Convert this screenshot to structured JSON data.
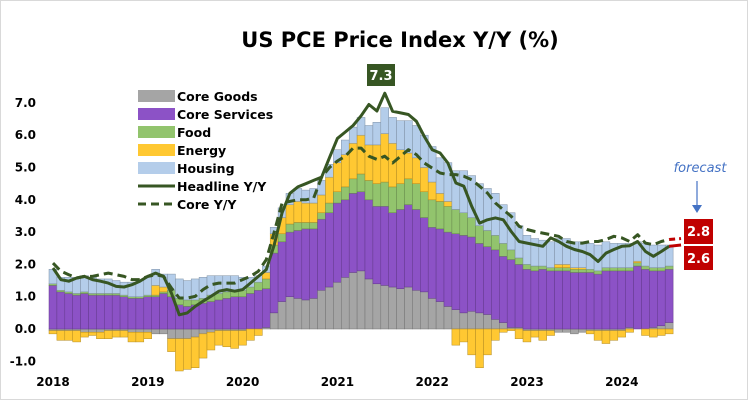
{
  "chart_data": {
    "type": "bar",
    "title": "US PCE Price Index Y/Y (%)",
    "xlabel": "",
    "ylabel": "",
    "ylim": [
      -1.0,
      7.5
    ],
    "yticks": [
      "-1.0",
      "0.0",
      "1.0",
      "2.0",
      "3.0",
      "4.0",
      "5.0",
      "6.0",
      "7.0"
    ],
    "ytick_values": [
      -1,
      0,
      1,
      2,
      3,
      4,
      5,
      6,
      7
    ],
    "x_start": "2018-01",
    "x_frequency": "monthly",
    "xtick_labels": [
      "2018",
      "2019",
      "2020",
      "2021",
      "2022",
      "2023",
      "2024"
    ],
    "grid": false,
    "legend_placement": "top-left",
    "stacked": true,
    "bar_series": [
      {
        "name": "Core Goods",
        "color": "#a5a5a5",
        "values": [
          -0.05,
          -0.05,
          -0.05,
          -0.05,
          -0.1,
          -0.1,
          -0.1,
          -0.05,
          -0.05,
          -0.05,
          -0.1,
          -0.1,
          -0.1,
          -0.15,
          -0.15,
          -0.3,
          -0.3,
          -0.3,
          -0.25,
          -0.15,
          -0.1,
          -0.05,
          -0.05,
          -0.05,
          -0.05,
          0,
          0,
          0.05,
          0.5,
          0.85,
          1.0,
          0.95,
          0.9,
          0.95,
          1.2,
          1.3,
          1.45,
          1.6,
          1.75,
          1.8,
          1.55,
          1.4,
          1.35,
          1.3,
          1.25,
          1.3,
          1.2,
          1.15,
          0.95,
          0.85,
          0.7,
          0.6,
          0.5,
          0.55,
          0.5,
          0.45,
          0.3,
          0.2,
          0.05,
          0.05,
          -0.05,
          -0.05,
          -0.05,
          -0.05,
          -0.1,
          -0.1,
          -0.15,
          -0.1,
          -0.05,
          -0.05,
          -0.05,
          -0.05,
          -0.05,
          0.05,
          0,
          0,
          0.05,
          0.1,
          0.2
        ]
      },
      {
        "name": "Core Services",
        "color": "#8c52c6",
        "values": [
          1.35,
          1.15,
          1.1,
          1.05,
          1.1,
          1.05,
          1.05,
          1.05,
          1.05,
          1.0,
          0.95,
          0.95,
          1.0,
          1.0,
          1.1,
          1.0,
          0.75,
          0.7,
          0.75,
          0.8,
          0.85,
          0.9,
          0.95,
          1.0,
          1.0,
          1.1,
          1.2,
          1.2,
          1.85,
          1.85,
          2.0,
          2.1,
          2.2,
          2.15,
          2.2,
          2.3,
          2.45,
          2.4,
          2.45,
          2.45,
          2.45,
          2.4,
          2.45,
          2.3,
          2.45,
          2.55,
          2.5,
          2.3,
          2.2,
          2.25,
          2.3,
          2.35,
          2.4,
          2.3,
          2.15,
          2.1,
          2.15,
          2.05,
          2.1,
          1.95,
          1.85,
          1.8,
          1.85,
          1.8,
          1.8,
          1.8,
          1.75,
          1.75,
          1.75,
          1.7,
          1.8,
          1.8,
          1.8,
          1.75,
          1.95,
          1.85,
          1.75,
          1.7,
          1.65
        ]
      },
      {
        "name": "Food",
        "color": "#92c46d",
        "values": [
          0.05,
          0.05,
          0.05,
          0.05,
          0.05,
          0.05,
          0.05,
          0.05,
          0.05,
          0.05,
          0.05,
          0.05,
          0.05,
          0.05,
          0.05,
          0.2,
          0.2,
          0.2,
          0.15,
          0.15,
          0.2,
          0.2,
          0.2,
          0.2,
          0.2,
          0.2,
          0.25,
          0.3,
          0.25,
          0.25,
          0.25,
          0.25,
          0.2,
          0.2,
          0.2,
          0.3,
          0.35,
          0.4,
          0.45,
          0.55,
          0.6,
          0.7,
          0.75,
          0.8,
          0.8,
          0.8,
          0.8,
          0.8,
          0.85,
          0.85,
          0.8,
          0.75,
          0.7,
          0.6,
          0.55,
          0.5,
          0.45,
          0.4,
          0.3,
          0.2,
          0.15,
          0.15,
          0.1,
          0.1,
          0.1,
          0.1,
          0.1,
          0.1,
          0.1,
          0.1,
          0.1,
          0.1,
          0.1,
          0.1,
          0.1,
          0.1,
          0.1,
          0.1,
          0.1
        ]
      },
      {
        "name": "Energy",
        "color": "#ffc832",
        "values": [
          -0.1,
          -0.3,
          -0.3,
          -0.35,
          -0.15,
          -0.1,
          -0.2,
          -0.25,
          -0.2,
          -0.2,
          -0.3,
          -0.3,
          -0.2,
          0.3,
          0.15,
          -0.4,
          -1.0,
          -0.95,
          -0.95,
          -0.75,
          -0.55,
          -0.45,
          -0.5,
          -0.55,
          -0.45,
          -0.35,
          -0.2,
          0.2,
          0.35,
          0.5,
          0.6,
          0.65,
          0.6,
          0.6,
          0.55,
          0.8,
          0.9,
          1.0,
          1.1,
          1.2,
          1.1,
          1.2,
          1.5,
          1.35,
          1.05,
          0.8,
          0.8,
          0.75,
          0.55,
          0.25,
          0.15,
          -0.5,
          -0.4,
          -0.8,
          -1.2,
          -0.8,
          -0.35,
          -0.1,
          -0.05,
          -0.3,
          -0.35,
          -0.2,
          -0.3,
          -0.15,
          0.1,
          0.1,
          0.05,
          0.05,
          -0.1,
          -0.3,
          -0.4,
          -0.3,
          -0.2,
          -0.1,
          0.05,
          -0.2,
          -0.25,
          -0.2,
          -0.15
        ]
      },
      {
        "name": "Housing",
        "color": "#b4cdea",
        "values": [
          0.45,
          0.4,
          0.45,
          0.5,
          0.5,
          0.5,
          0.45,
          0.45,
          0.4,
          0.4,
          0.45,
          0.5,
          0.55,
          0.5,
          0.4,
          0.5,
          0.6,
          0.6,
          0.65,
          0.65,
          0.6,
          0.55,
          0.5,
          0.45,
          0.4,
          0.3,
          0.2,
          0.2,
          0.2,
          0.3,
          0.35,
          0.4,
          0.4,
          0.45,
          0.45,
          0.4,
          0.4,
          0.45,
          0.5,
          0.55,
          0.6,
          0.7,
          0.8,
          0.8,
          0.9,
          1.0,
          1.0,
          1.0,
          1.1,
          1.1,
          1.2,
          1.2,
          1.3,
          1.3,
          1.3,
          1.3,
          1.3,
          1.2,
          1.15,
          1.0,
          0.9,
          0.85,
          0.8,
          0.8,
          0.8,
          0.8,
          0.8,
          0.8,
          0.8,
          0.8,
          0.8,
          0.75,
          0.75,
          0.75,
          0.6,
          0.7,
          0.7,
          0.7,
          0.65
        ]
      }
    ],
    "line_series": [
      {
        "name": "Headline Y/Y",
        "color": "#375623",
        "style": "solid",
        "values": [
          1.89,
          1.53,
          1.48,
          1.58,
          1.63,
          1.53,
          1.48,
          1.42,
          1.32,
          1.3,
          1.37,
          1.48,
          1.63,
          1.73,
          1.63,
          1.11,
          0.44,
          0.5,
          0.7,
          0.86,
          1.01,
          1.17,
          1.22,
          1.17,
          1.22,
          1.42,
          1.63,
          1.84,
          2.6,
          3.6,
          4.2,
          4.4,
          4.5,
          4.6,
          4.7,
          5.3,
          5.9,
          6.1,
          6.3,
          6.6,
          6.95,
          6.75,
          7.3,
          6.74,
          6.69,
          6.64,
          6.43,
          5.96,
          5.55,
          5.45,
          5.14,
          4.52,
          4.42,
          3.8,
          3.28,
          3.38,
          3.44,
          3.38,
          3.02,
          2.71,
          2.66,
          2.61,
          2.56,
          2.82,
          2.71,
          2.56,
          2.46,
          2.4,
          2.3,
          2.09,
          2.35,
          2.46,
          2.56,
          2.58,
          2.71,
          2.4,
          2.25,
          2.4,
          2.56,
          2.6
        ]
      },
      {
        "name": "Core Y/Y",
        "color": "#375623",
        "style": "dashed",
        "values": [
          2.04,
          1.79,
          1.68,
          1.58,
          1.63,
          1.63,
          1.68,
          1.73,
          1.68,
          1.63,
          1.53,
          1.53,
          1.63,
          1.68,
          1.63,
          1.27,
          0.96,
          0.96,
          1.01,
          1.22,
          1.37,
          1.42,
          1.42,
          1.42,
          1.53,
          1.63,
          1.79,
          2.15,
          3.0,
          3.9,
          3.95,
          4.0,
          4.0,
          4.05,
          4.7,
          5.0,
          5.2,
          5.35,
          5.6,
          5.6,
          5.35,
          5.25,
          5.35,
          5.14,
          5.35,
          5.55,
          5.4,
          5.14,
          4.98,
          4.83,
          4.78,
          4.78,
          4.73,
          4.62,
          4.42,
          4.21,
          3.9,
          3.69,
          3.49,
          3.18,
          3.08,
          3.02,
          2.97,
          2.92,
          2.87,
          2.71,
          2.66,
          2.66,
          2.71,
          2.71,
          2.77,
          2.87,
          2.82,
          2.71,
          2.92,
          2.66,
          2.61,
          2.71,
          2.77,
          2.8
        ]
      }
    ],
    "forecast_color": "#c00000",
    "annotations": {
      "peak_label": "7.3",
      "peak_color": "#375623",
      "forecast_text": "forecast",
      "forecast_text_color": "#4472c4",
      "forecast_core": "2.8",
      "forecast_headline": "2.6"
    }
  }
}
